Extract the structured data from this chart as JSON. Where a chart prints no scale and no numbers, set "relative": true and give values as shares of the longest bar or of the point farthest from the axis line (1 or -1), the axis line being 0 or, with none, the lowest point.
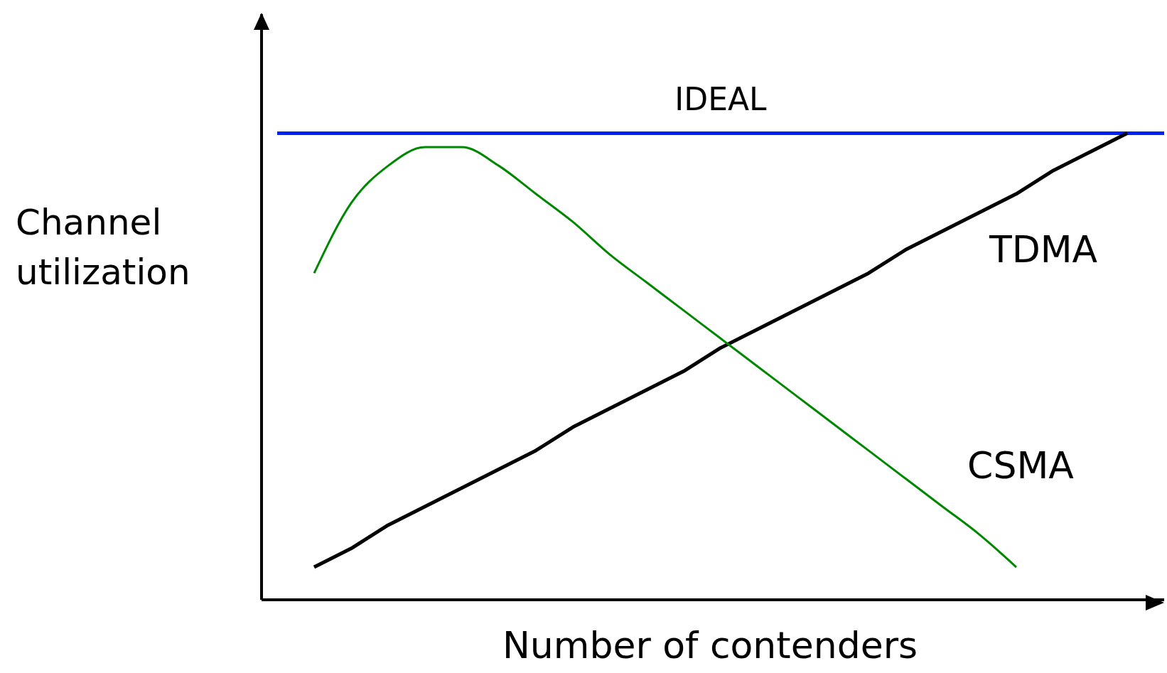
{
  "chart_data": {
    "type": "line",
    "relative": true,
    "xlabel": "Number of contenders",
    "ylabel": "Channel utilization",
    "categories": [
      null,
      null,
      null,
      null,
      null,
      null,
      null,
      null,
      null,
      null,
      null,
      null,
      null,
      null,
      null,
      null,
      null,
      null,
      null,
      null,
      null,
      null,
      null,
      null,
      null
    ],
    "grid": false,
    "legend": false,
    "marker": "none",
    "series": [
      {
        "name": "IDEAL",
        "color": "#0022ff",
        "values": [
          1,
          1,
          1,
          1,
          1,
          1,
          1,
          1,
          1,
          1,
          1,
          1,
          1,
          1,
          1,
          1,
          1,
          1,
          1,
          1,
          1,
          1,
          1,
          1,
          1
        ]
      },
      {
        "name": "TDMA",
        "color": "#000000",
        "values": [
          null,
          0.07,
          0.11,
          0.16,
          0.2,
          0.24,
          0.28,
          0.32,
          0.37,
          0.41,
          0.45,
          0.49,
          0.54,
          0.58,
          0.62,
          0.66,
          0.7,
          0.75,
          0.79,
          0.83,
          0.87,
          0.92,
          0.96,
          1.0,
          null
        ]
      },
      {
        "name": "CSMA",
        "color": "#008800",
        "values": [
          null,
          0.7,
          0.85,
          0.93,
          0.97,
          0.97,
          0.93,
          0.87,
          0.81,
          0.74,
          0.68,
          0.62,
          0.56,
          0.5,
          0.44,
          0.38,
          0.32,
          0.26,
          0.2,
          0.14,
          0.07,
          null,
          null,
          null,
          null
        ]
      }
    ]
  }
}
